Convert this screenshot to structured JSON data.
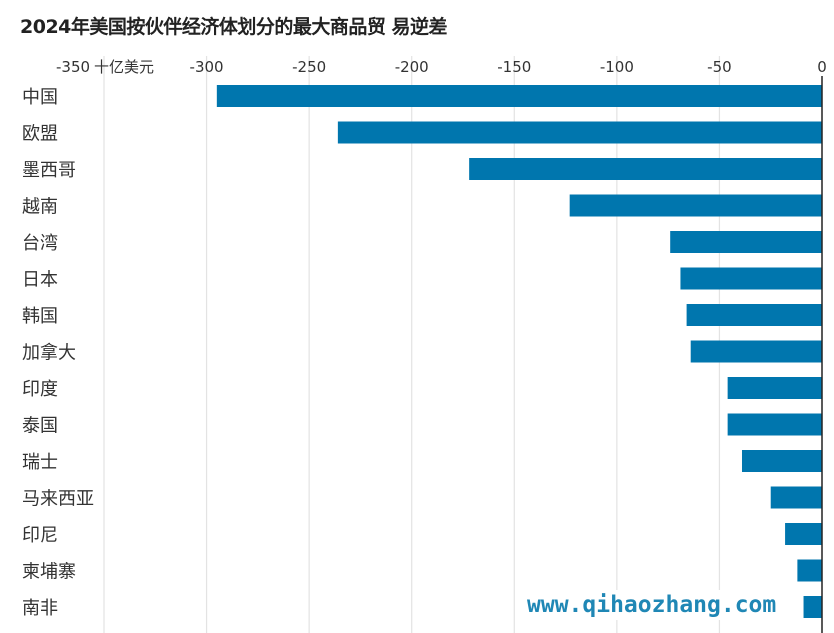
{
  "chart_data": {
    "type": "bar",
    "orientation": "horizontal",
    "title": "2024年美国按伙伴经济体划分的最大商品贸 易逆差",
    "unit_label": "十亿美元",
    "categories": [
      "中国",
      "欧盟",
      "墨西哥",
      "越南",
      "台湾",
      "日本",
      "韩国",
      "加拿大",
      "印度",
      "泰国",
      "瑞士",
      "马来西亚",
      "印尼",
      "柬埔寨",
      "南非"
    ],
    "values": [
      -295,
      -236,
      -172,
      -123,
      -74,
      -69,
      -66,
      -64,
      -46,
      -46,
      -39,
      -25,
      -18,
      -12,
      -9
    ],
    "xlim": [
      -350,
      0
    ],
    "xticks": [
      -350,
      -300,
      -250,
      -200,
      -150,
      -100,
      -50,
      0
    ],
    "xtick_labels": [
      "-350",
      "-300",
      "-250",
      "-200",
      "-150",
      "-100",
      "-50",
      "0"
    ],
    "grid": true,
    "bar_color": "#0076ae"
  },
  "watermark": "www.qihaozhang.com"
}
